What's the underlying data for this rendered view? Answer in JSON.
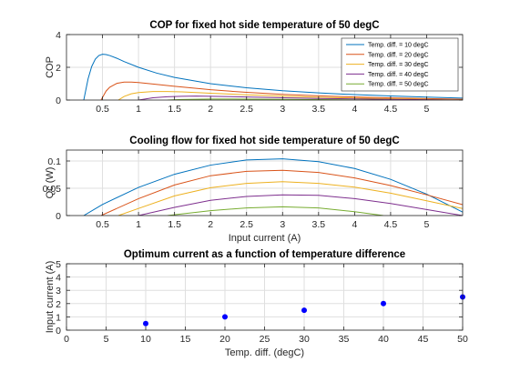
{
  "chart_data": [
    {
      "type": "line",
      "title": "COP for fixed hot side temperature of 50 degC",
      "xlabel": "",
      "ylabel": "COP",
      "xlim": [
        0,
        5.5
      ],
      "ylim": [
        0,
        4
      ],
      "xticks": [
        0.5,
        1,
        1.5,
        2,
        2.5,
        3,
        3.5,
        4,
        4.5,
        5
      ],
      "yticks": [
        0,
        2,
        4
      ],
      "grid": true,
      "legend_position": "top-right",
      "series": [
        {
          "name": "Temp. diff. = 10 degC",
          "color": "#0072BD",
          "x": [
            0.24,
            0.3,
            0.35,
            0.4,
            0.45,
            0.5,
            0.55,
            0.6,
            0.7,
            0.8,
            1.0,
            1.25,
            1.5,
            2.0,
            2.5,
            3.0,
            3.5,
            4.0,
            4.5,
            5.0,
            5.5
          ],
          "y": [
            0,
            1.3,
            2.05,
            2.5,
            2.72,
            2.8,
            2.78,
            2.72,
            2.55,
            2.35,
            2.0,
            1.65,
            1.38,
            1.0,
            0.75,
            0.57,
            0.44,
            0.33,
            0.25,
            0.18,
            0.12
          ]
        },
        {
          "name": "Temp. diff. = 20 degC",
          "color": "#D95319",
          "x": [
            0.48,
            0.55,
            0.6,
            0.7,
            0.8,
            0.9,
            1.0,
            1.2,
            1.5,
            2.0,
            2.5,
            3.0,
            3.5,
            4.0,
            4.5,
            5.0,
            5.5
          ],
          "y": [
            0,
            0.55,
            0.78,
            1.02,
            1.1,
            1.1,
            1.07,
            0.98,
            0.84,
            0.63,
            0.47,
            0.35,
            0.26,
            0.19,
            0.13,
            0.09,
            0.05
          ]
        },
        {
          "name": "Temp. diff. = 30 degC",
          "color": "#EDB120",
          "x": [
            0.72,
            0.8,
            0.9,
            1.0,
            1.2,
            1.4,
            1.6,
            2.0,
            2.5,
            3.0,
            3.5,
            4.0,
            4.5,
            5.0,
            5.5
          ],
          "y": [
            0,
            0.22,
            0.38,
            0.46,
            0.52,
            0.52,
            0.5,
            0.42,
            0.32,
            0.24,
            0.17,
            0.12,
            0.08,
            0.04,
            0.01
          ]
        },
        {
          "name": "Temp. diff. = 40 degC",
          "color": "#7E2F8E",
          "x": [
            1.0,
            1.2,
            1.4,
            1.6,
            1.8,
            2.0,
            2.5,
            3.0,
            3.5,
            4.0,
            4.5,
            5.0,
            5.5
          ],
          "y": [
            0,
            0.14,
            0.2,
            0.23,
            0.24,
            0.23,
            0.19,
            0.14,
            0.1,
            0.07,
            0.04,
            0.02,
            0.0
          ]
        },
        {
          "name": "Temp. diff. = 50 degC",
          "color": "#77AC30",
          "x": [
            1.4,
            1.6,
            1.8,
            2.0,
            2.3,
            2.6,
            3.0,
            3.5,
            4.0,
            4.4
          ],
          "y": [
            0,
            0.035,
            0.05,
            0.06,
            0.06,
            0.055,
            0.045,
            0.025,
            0.01,
            0
          ]
        }
      ]
    },
    {
      "type": "line",
      "title": "Cooling flow for fixed hot side temperature of 50 degC",
      "xlabel": "Input current (A)",
      "ylabel": "Qc (W)",
      "xlim": [
        0,
        5.5
      ],
      "ylim": [
        0,
        0.12
      ],
      "xticks": [
        0.5,
        1,
        1.5,
        2,
        2.5,
        3,
        3.5,
        4,
        4.5,
        5
      ],
      "yticks": [
        0,
        0.05,
        0.1
      ],
      "yticklabels": [
        "0",
        "0.05",
        "0.1"
      ],
      "grid": true,
      "series": [
        {
          "color": "#0072BD",
          "x": [
            0.24,
            0.5,
            1.0,
            1.5,
            2.0,
            2.5,
            3.0,
            3.5,
            4.0,
            4.5,
            5.0,
            5.5
          ],
          "y": [
            0,
            0.0203,
            0.0516,
            0.0757,
            0.0924,
            0.1018,
            0.1039,
            0.0987,
            0.0862,
            0.0664,
            0.0393,
            0.0063
          ]
        },
        {
          "color": "#D95319",
          "x": [
            0.48,
            1.0,
            1.5,
            2.0,
            2.5,
            3.0,
            3.5,
            4.0,
            4.5,
            5.0,
            5.5
          ],
          "y": [
            0,
            0.031,
            0.056,
            0.073,
            0.081,
            0.083,
            0.079,
            0.069,
            0.055,
            0.038,
            0.02
          ]
        },
        {
          "color": "#EDB120",
          "x": [
            0.72,
            1.0,
            1.5,
            2.0,
            2.5,
            3.0,
            3.5,
            4.0,
            4.5,
            5.0,
            5.5
          ],
          "y": [
            0,
            0.013,
            0.036,
            0.051,
            0.059,
            0.062,
            0.059,
            0.052,
            0.041,
            0.027,
            0.013
          ]
        },
        {
          "color": "#7E2F8E",
          "x": [
            1.0,
            1.5,
            2.0,
            2.5,
            3.0,
            3.5,
            4.0,
            4.5,
            5.0,
            5.5
          ],
          "y": [
            0,
            0.015,
            0.028,
            0.035,
            0.038,
            0.037,
            0.031,
            0.022,
            0.011,
            0
          ]
        },
        {
          "color": "#77AC30",
          "x": [
            1.4,
            2.0,
            2.5,
            3.0,
            3.5,
            4.0,
            4.4
          ],
          "y": [
            0,
            0.009,
            0.014,
            0.016,
            0.014,
            0.007,
            0
          ]
        }
      ]
    },
    {
      "type": "scatter",
      "title": "Optimum current as a function of temperature difference",
      "xlabel": "Temp. diff. (degC)",
      "ylabel": "Input current (A)",
      "xlim": [
        0,
        50
      ],
      "ylim": [
        0,
        5
      ],
      "xticks": [
        0,
        5,
        10,
        15,
        20,
        25,
        30,
        35,
        40,
        45,
        50
      ],
      "yticks": [
        0,
        1,
        2,
        3,
        4,
        5
      ],
      "grid": true,
      "marker_color": "#0000FF",
      "x": [
        10,
        20,
        30,
        40,
        50
      ],
      "y": [
        0.5,
        1.0,
        1.5,
        2.0,
        2.5
      ]
    }
  ]
}
